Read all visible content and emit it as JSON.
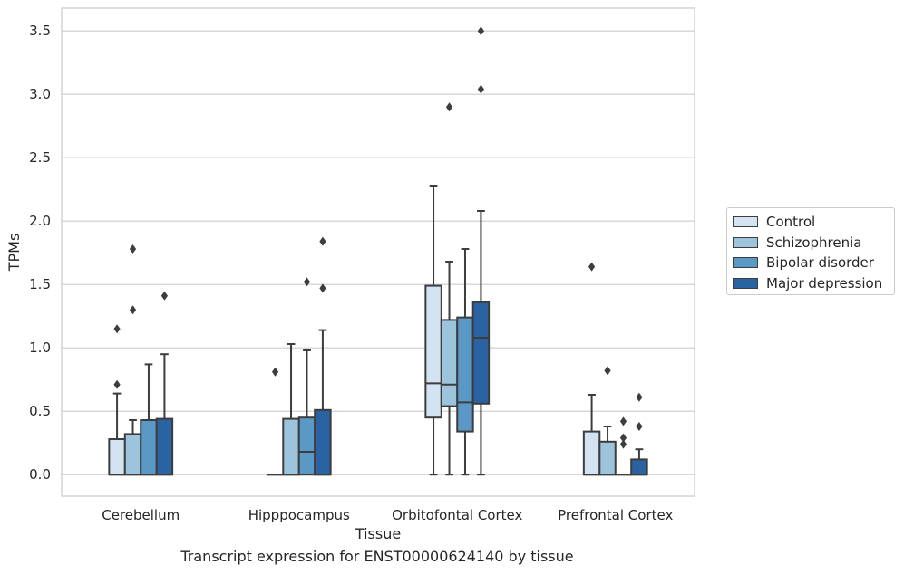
{
  "chart_data": {
    "type": "box",
    "title": "",
    "xlabel": "Tissue",
    "ylabel": "TPMs",
    "caption": "Transcript expression for ENST00000624140 by tissue",
    "ylim": [
      -0.17,
      3.68
    ],
    "yticks": [
      "0.0",
      "0.5",
      "1.0",
      "1.5",
      "2.0",
      "2.5",
      "3.0",
      "3.5"
    ],
    "grid": "horizontal",
    "legend_position": "right",
    "categories": [
      "Cerebellum",
      "Hipppocampus",
      "Orbitofontal Cortex",
      "Prefrontal Cortex"
    ],
    "series": [
      {
        "name": "Control",
        "color": "#d3e3f2",
        "boxes": [
          {
            "min": 0.0,
            "q1": 0.0,
            "median": 0.0,
            "q3": 0.28,
            "max": 0.64,
            "outliers": [
              0.71,
              1.15
            ]
          },
          {
            "min": 0.0,
            "q1": 0.0,
            "median": 0.0,
            "q3": 0.0,
            "max": 0.0,
            "outliers": [
              0.81
            ]
          },
          {
            "min": 0.0,
            "q1": 0.45,
            "median": 0.72,
            "q3": 1.49,
            "max": 2.28,
            "outliers": []
          },
          {
            "min": 0.0,
            "q1": 0.0,
            "median": 0.0,
            "q3": 0.34,
            "max": 0.63,
            "outliers": [
              1.64
            ]
          }
        ]
      },
      {
        "name": "Schizophrenia",
        "color": "#9dc4dd",
        "boxes": [
          {
            "min": 0.0,
            "q1": 0.0,
            "median": 0.0,
            "q3": 0.32,
            "max": 0.43,
            "outliers": [
              1.3,
              1.78
            ]
          },
          {
            "min": 0.0,
            "q1": 0.0,
            "median": 0.0,
            "q3": 0.44,
            "max": 1.03,
            "outliers": []
          },
          {
            "min": 0.0,
            "q1": 0.54,
            "median": 0.71,
            "q3": 1.22,
            "max": 1.68,
            "outliers": [
              2.9
            ]
          },
          {
            "min": 0.0,
            "q1": 0.0,
            "median": 0.0,
            "q3": 0.26,
            "max": 0.38,
            "outliers": [
              0.82
            ]
          }
        ]
      },
      {
        "name": "Bipolar disorder",
        "color": "#5a98c6",
        "boxes": [
          {
            "min": 0.0,
            "q1": 0.0,
            "median": 0.0,
            "q3": 0.43,
            "max": 0.87,
            "outliers": []
          },
          {
            "min": 0.0,
            "q1": 0.0,
            "median": 0.18,
            "q3": 0.45,
            "max": 0.98,
            "outliers": [
              1.52
            ]
          },
          {
            "min": 0.0,
            "q1": 0.34,
            "median": 0.57,
            "q3": 1.24,
            "max": 1.78,
            "outliers": []
          },
          {
            "min": 0.0,
            "q1": 0.0,
            "median": 0.0,
            "q3": 0.0,
            "max": 0.0,
            "outliers": [
              0.24,
              0.29,
              0.42
            ]
          }
        ]
      },
      {
        "name": "Major depression",
        "color": "#2a63a1",
        "boxes": [
          {
            "min": 0.0,
            "q1": 0.0,
            "median": 0.0,
            "q3": 0.44,
            "max": 0.95,
            "outliers": [
              1.41
            ]
          },
          {
            "min": 0.0,
            "q1": 0.0,
            "median": 0.0,
            "q3": 0.51,
            "max": 1.14,
            "outliers": [
              1.47,
              1.84
            ]
          },
          {
            "min": 0.0,
            "q1": 0.56,
            "median": 1.08,
            "q3": 1.36,
            "max": 2.08,
            "outliers": [
              3.04,
              3.5
            ]
          },
          {
            "min": 0.0,
            "q1": 0.0,
            "median": 0.0,
            "q3": 0.12,
            "max": 0.2,
            "outliers": [
              0.38,
              0.61
            ]
          }
        ]
      }
    ]
  }
}
